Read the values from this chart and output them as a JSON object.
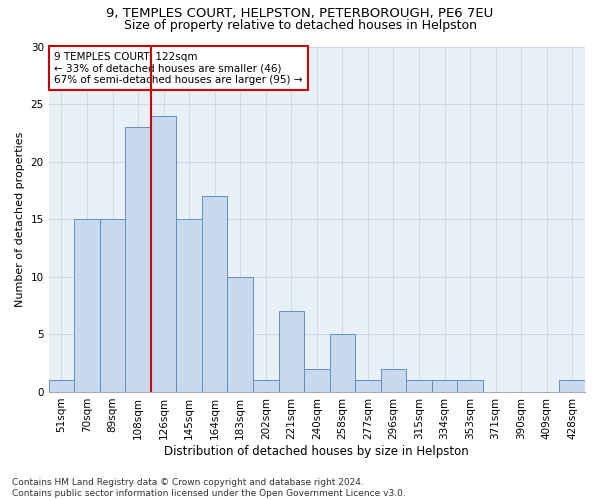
{
  "title1": "9, TEMPLES COURT, HELPSTON, PETERBOROUGH, PE6 7EU",
  "title2": "Size of property relative to detached houses in Helpston",
  "xlabel": "Distribution of detached houses by size in Helpston",
  "ylabel": "Number of detached properties",
  "categories": [
    "51sqm",
    "70sqm",
    "89sqm",
    "108sqm",
    "126sqm",
    "145sqm",
    "164sqm",
    "183sqm",
    "202sqm",
    "221sqm",
    "240sqm",
    "258sqm",
    "277sqm",
    "296sqm",
    "315sqm",
    "334sqm",
    "353sqm",
    "371sqm",
    "390sqm",
    "409sqm",
    "428sqm"
  ],
  "values": [
    1,
    15,
    15,
    23,
    24,
    15,
    17,
    10,
    1,
    7,
    2,
    5,
    1,
    2,
    1,
    1,
    1,
    0,
    0,
    0,
    1
  ],
  "bar_color": "#c8d9ef",
  "bar_edge_color": "#6090c8",
  "vline_color": "#cc0000",
  "annotation_box_text": "9 TEMPLES COURT: 122sqm\n← 33% of detached houses are smaller (46)\n67% of semi-detached houses are larger (95) →",
  "annotation_box_color": "#ffffff",
  "annotation_box_edge_color": "#cc0000",
  "ylim": [
    0,
    30
  ],
  "yticks": [
    0,
    5,
    10,
    15,
    20,
    25,
    30
  ],
  "grid_color": "#d0d8e8",
  "bg_color": "#eaf0f8",
  "footnote": "Contains HM Land Registry data © Crown copyright and database right 2024.\nContains public sector information licensed under the Open Government Licence v3.0.",
  "title1_fontsize": 9.5,
  "title2_fontsize": 9,
  "xlabel_fontsize": 8.5,
  "ylabel_fontsize": 8,
  "tick_fontsize": 7.5,
  "annot_fontsize": 7.5,
  "footnote_fontsize": 6.5
}
